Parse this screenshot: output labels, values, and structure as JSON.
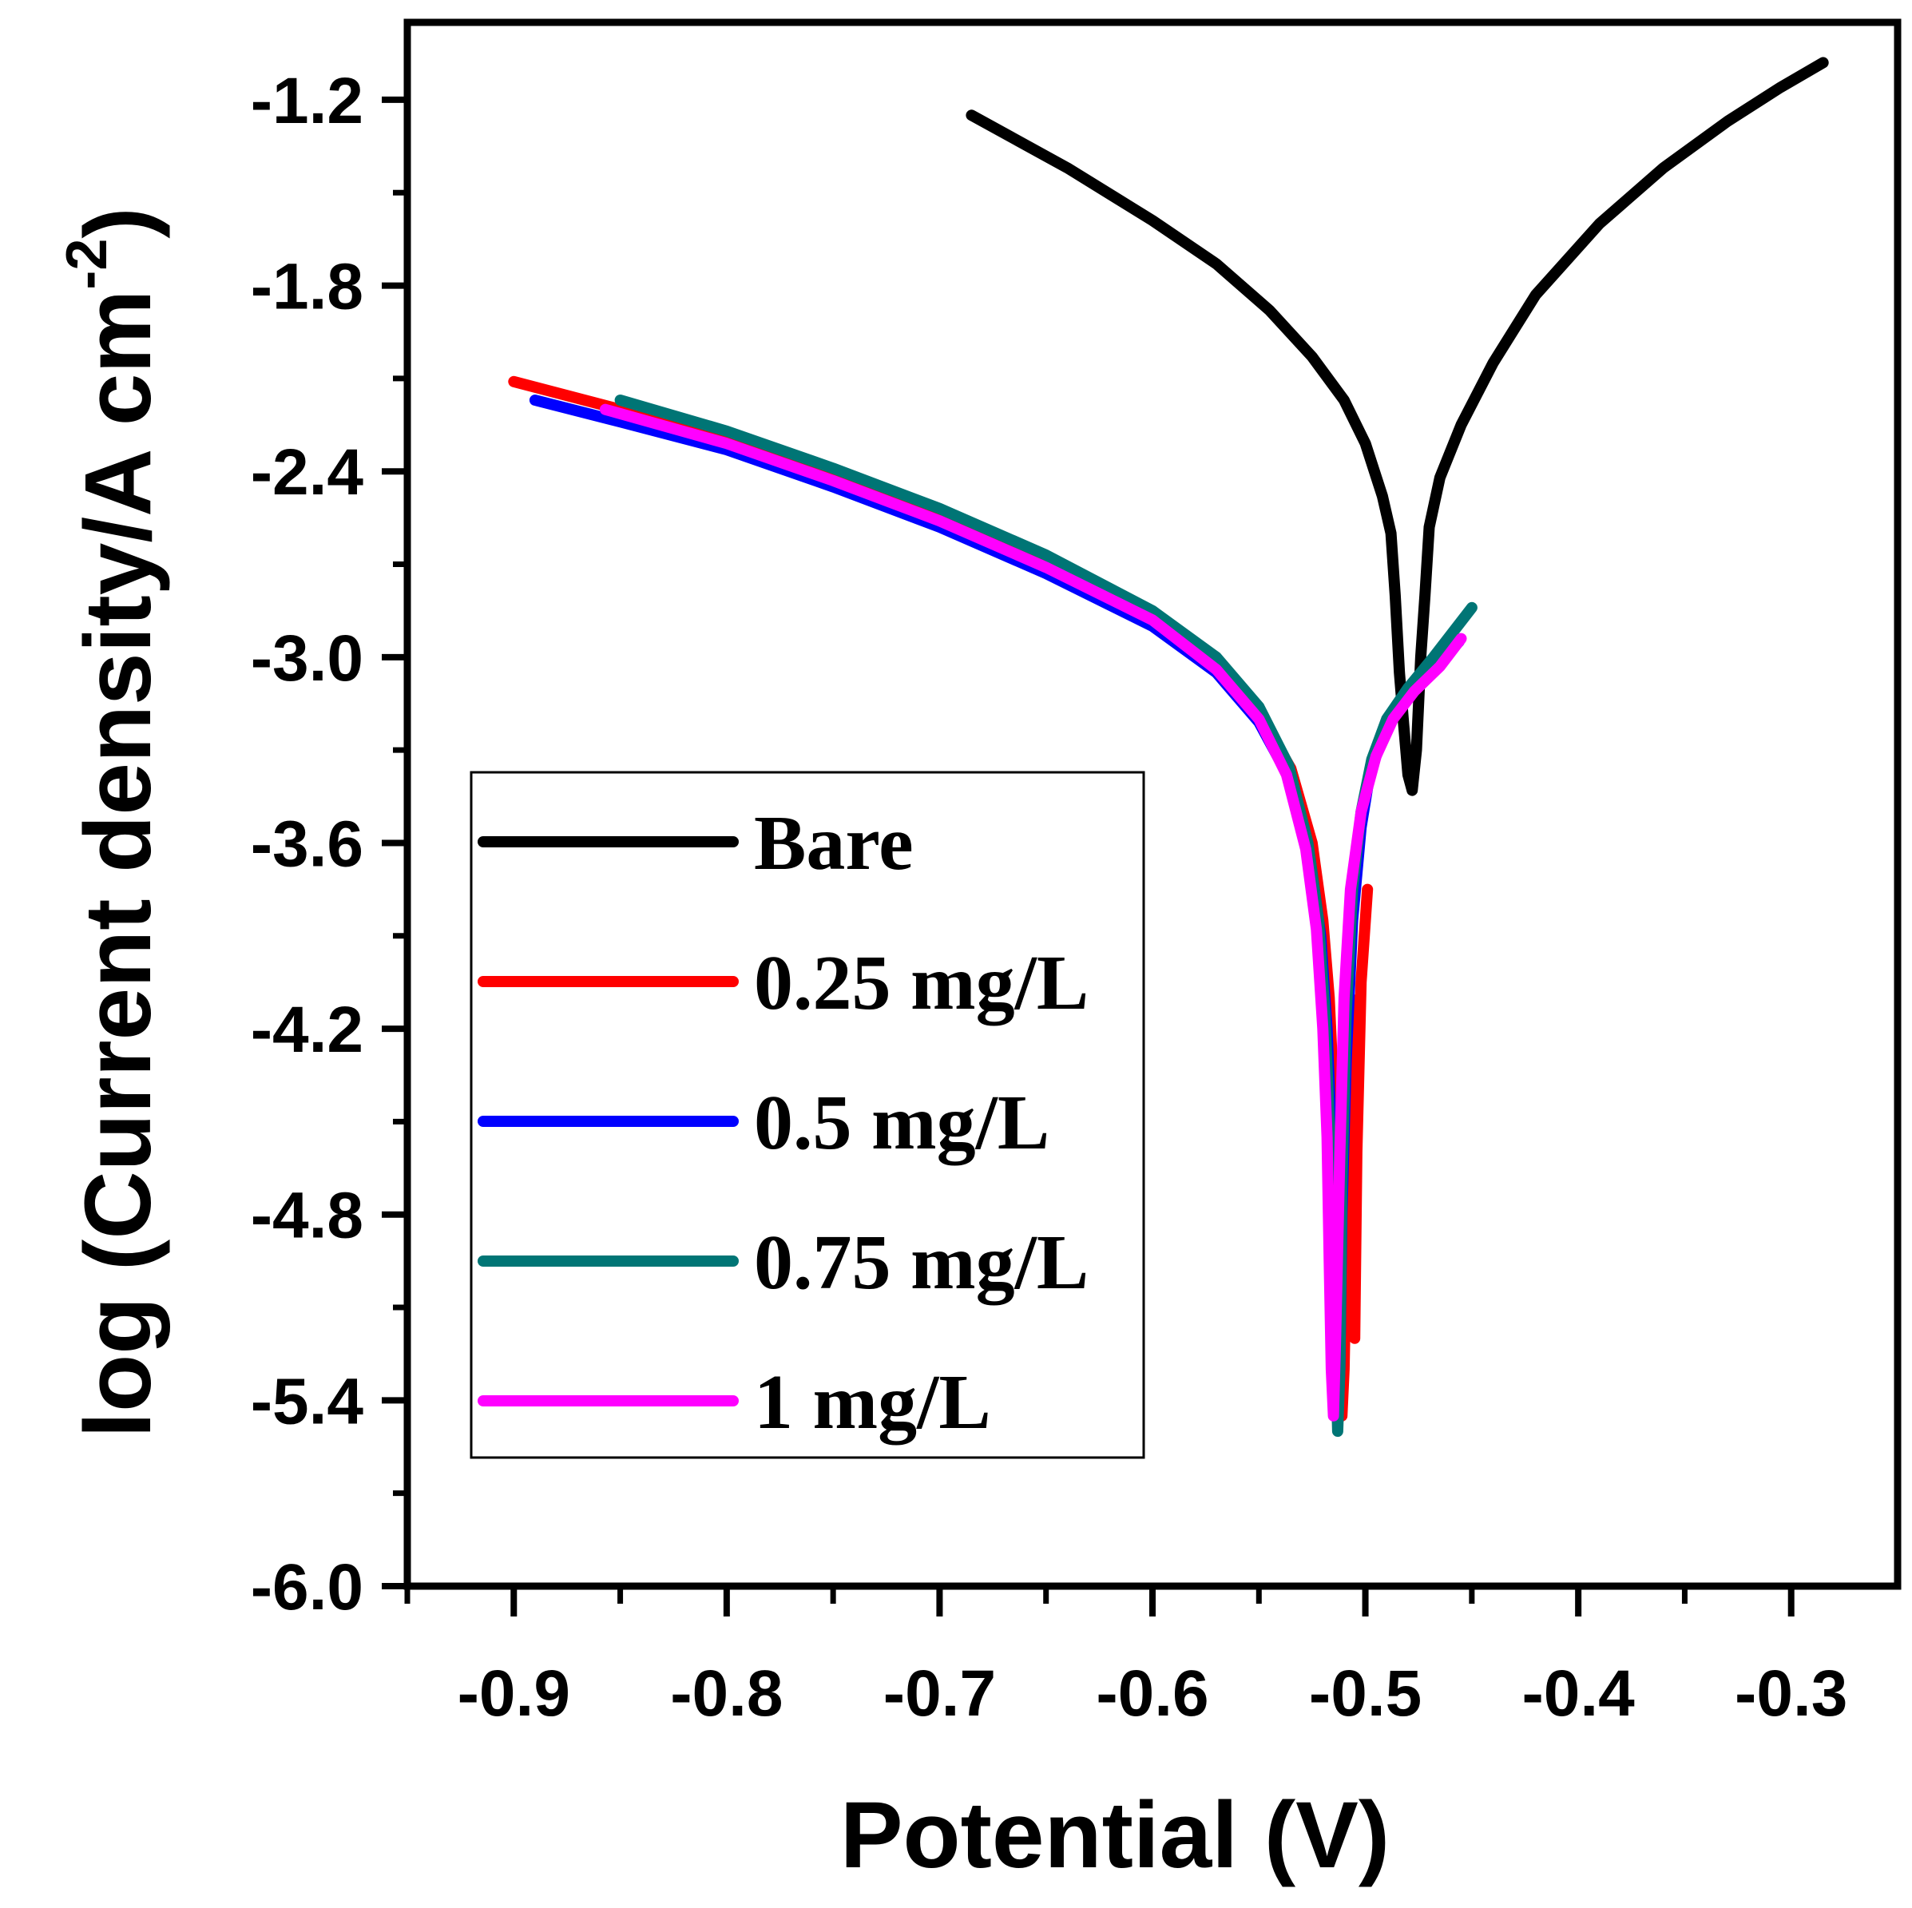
{
  "chart_data": {
    "type": "line",
    "title": "",
    "xlabel": "Potential (V)",
    "ylabel_main": "log (Current density/A cm",
    "ylabel_sup": "-2",
    "ylabel_close": ")",
    "xlim": [
      -0.95,
      -0.25
    ],
    "ylim": [
      -6.0,
      -0.95
    ],
    "x_ticks": [
      -0.9,
      -0.8,
      -0.7,
      -0.6,
      -0.5,
      -0.4,
      -0.3
    ],
    "x_tick_labels": [
      "-0.9",
      "-0.8",
      "-0.7",
      "-0.6",
      "-0.5",
      "-0.4",
      "-0.3"
    ],
    "y_ticks": [
      -6.0,
      -5.4,
      -4.8,
      -4.2,
      -3.6,
      -3.0,
      -2.4,
      -1.8,
      -1.2
    ],
    "y_tick_labels": [
      "-6.0",
      "-5.4",
      "-4.8",
      "-4.2",
      "-3.6",
      "-3.0",
      "-2.4",
      "-1.8",
      "-1.2"
    ],
    "legend_position": "bottom-left",
    "series": [
      {
        "name": "Bare",
        "color": "#000000",
        "points": [
          [
            -0.685,
            -1.25
          ],
          [
            -0.64,
            -1.42
          ],
          [
            -0.6,
            -1.59
          ],
          [
            -0.57,
            -1.73
          ],
          [
            -0.545,
            -1.88
          ],
          [
            -0.525,
            -2.03
          ],
          [
            -0.51,
            -2.17
          ],
          [
            -0.5,
            -2.31
          ],
          [
            -0.492,
            -2.48
          ],
          [
            -0.488,
            -2.6
          ],
          [
            -0.486,
            -2.8
          ],
          [
            -0.484,
            -3.05
          ],
          [
            -0.482,
            -3.22
          ],
          [
            -0.48,
            -3.38
          ],
          [
            -0.478,
            -3.43
          ],
          [
            -0.476,
            -3.3
          ],
          [
            -0.474,
            -3.0
          ],
          [
            -0.472,
            -2.8
          ],
          [
            -0.47,
            -2.58
          ],
          [
            -0.465,
            -2.42
          ],
          [
            -0.455,
            -2.25
          ],
          [
            -0.44,
            -2.05
          ],
          [
            -0.42,
            -1.83
          ],
          [
            -0.39,
            -1.6
          ],
          [
            -0.36,
            -1.42
          ],
          [
            -0.33,
            -1.27
          ],
          [
            -0.305,
            -1.16
          ],
          [
            -0.285,
            -1.08
          ]
        ]
      },
      {
        "name": "0.25 mg/L",
        "color": "#ff0000",
        "points": [
          [
            -0.9,
            -2.11
          ],
          [
            -0.85,
            -2.2
          ],
          [
            -0.8,
            -2.3
          ],
          [
            -0.75,
            -2.42
          ],
          [
            -0.7,
            -2.55
          ],
          [
            -0.65,
            -2.7
          ],
          [
            -0.6,
            -2.87
          ],
          [
            -0.57,
            -3.02
          ],
          [
            -0.55,
            -3.18
          ],
          [
            -0.535,
            -3.36
          ],
          [
            -0.525,
            -3.6
          ],
          [
            -0.52,
            -3.85
          ],
          [
            -0.517,
            -4.1
          ],
          [
            -0.515,
            -4.4
          ],
          [
            -0.514,
            -4.75
          ],
          [
            -0.513,
            -5.05
          ],
          [
            -0.512,
            -5.35
          ],
          [
            -0.511,
            -5.45
          ],
          [
            -0.51,
            -5.3
          ],
          [
            -0.508,
            -4.6
          ],
          [
            -0.507,
            -4.1
          ],
          [
            -0.506,
            -4.6
          ],
          [
            -0.505,
            -5.2
          ],
          [
            -0.504,
            -4.6
          ],
          [
            -0.502,
            -4.05
          ],
          [
            -0.499,
            -3.75
          ]
        ]
      },
      {
        "name": "0.5 mg/L",
        "color": "#0000ff",
        "points": [
          [
            -0.89,
            -2.17
          ],
          [
            -0.85,
            -2.24
          ],
          [
            -0.8,
            -2.33
          ],
          [
            -0.75,
            -2.45
          ],
          [
            -0.7,
            -2.58
          ],
          [
            -0.65,
            -2.73
          ],
          [
            -0.6,
            -2.9
          ],
          [
            -0.57,
            -3.05
          ],
          [
            -0.55,
            -3.21
          ],
          [
            -0.535,
            -3.4
          ],
          [
            -0.526,
            -3.65
          ],
          [
            -0.521,
            -3.9
          ],
          [
            -0.518,
            -4.2
          ],
          [
            -0.516,
            -4.55
          ],
          [
            -0.515,
            -4.95
          ],
          [
            -0.514,
            -5.3
          ],
          [
            -0.513,
            -5.47
          ],
          [
            -0.512,
            -5.3
          ],
          [
            -0.511,
            -4.8
          ],
          [
            -0.509,
            -4.3
          ],
          [
            -0.506,
            -3.85
          ],
          [
            -0.502,
            -3.55
          ],
          [
            -0.498,
            -3.38
          ],
          [
            -0.49,
            -3.22
          ],
          [
            -0.48,
            -3.12
          ],
          [
            -0.47,
            -3.05
          ],
          [
            -0.456,
            -2.95
          ]
        ]
      },
      {
        "name": "0.75 mg/L",
        "color": "#007575",
        "points": [
          [
            -0.85,
            -2.17
          ],
          [
            -0.8,
            -2.27
          ],
          [
            -0.75,
            -2.39
          ],
          [
            -0.7,
            -2.52
          ],
          [
            -0.65,
            -2.67
          ],
          [
            -0.6,
            -2.85
          ],
          [
            -0.57,
            -3.0
          ],
          [
            -0.55,
            -3.16
          ],
          [
            -0.536,
            -3.35
          ],
          [
            -0.527,
            -3.6
          ],
          [
            -0.522,
            -3.85
          ],
          [
            -0.519,
            -4.15
          ],
          [
            -0.517,
            -4.5
          ],
          [
            -0.515,
            -4.9
          ],
          [
            -0.514,
            -5.25
          ],
          [
            -0.513,
            -5.5
          ],
          [
            -0.512,
            -5.3
          ],
          [
            -0.511,
            -4.7
          ],
          [
            -0.509,
            -4.15
          ],
          [
            -0.506,
            -3.75
          ],
          [
            -0.502,
            -3.5
          ],
          [
            -0.497,
            -3.33
          ],
          [
            -0.49,
            -3.2
          ],
          [
            -0.48,
            -3.1
          ],
          [
            -0.468,
            -3.0
          ],
          [
            -0.45,
            -2.84
          ]
        ]
      },
      {
        "name": "1 mg/L",
        "color": "#ff00ff",
        "points": [
          [
            -0.857,
            -2.2
          ],
          [
            -0.8,
            -2.31
          ],
          [
            -0.75,
            -2.43
          ],
          [
            -0.7,
            -2.56
          ],
          [
            -0.65,
            -2.71
          ],
          [
            -0.6,
            -2.88
          ],
          [
            -0.57,
            -3.04
          ],
          [
            -0.55,
            -3.2
          ],
          [
            -0.537,
            -3.38
          ],
          [
            -0.528,
            -3.62
          ],
          [
            -0.523,
            -3.88
          ],
          [
            -0.52,
            -4.2
          ],
          [
            -0.518,
            -4.55
          ],
          [
            -0.517,
            -4.95
          ],
          [
            -0.516,
            -5.3
          ],
          [
            -0.515,
            -5.45
          ],
          [
            -0.514,
            -5.2
          ],
          [
            -0.512,
            -4.6
          ],
          [
            -0.51,
            -4.1
          ],
          [
            -0.507,
            -3.75
          ],
          [
            -0.502,
            -3.5
          ],
          [
            -0.495,
            -3.32
          ],
          [
            -0.487,
            -3.2
          ],
          [
            -0.477,
            -3.11
          ],
          [
            -0.465,
            -3.03
          ],
          [
            -0.455,
            -2.94
          ]
        ]
      }
    ]
  }
}
